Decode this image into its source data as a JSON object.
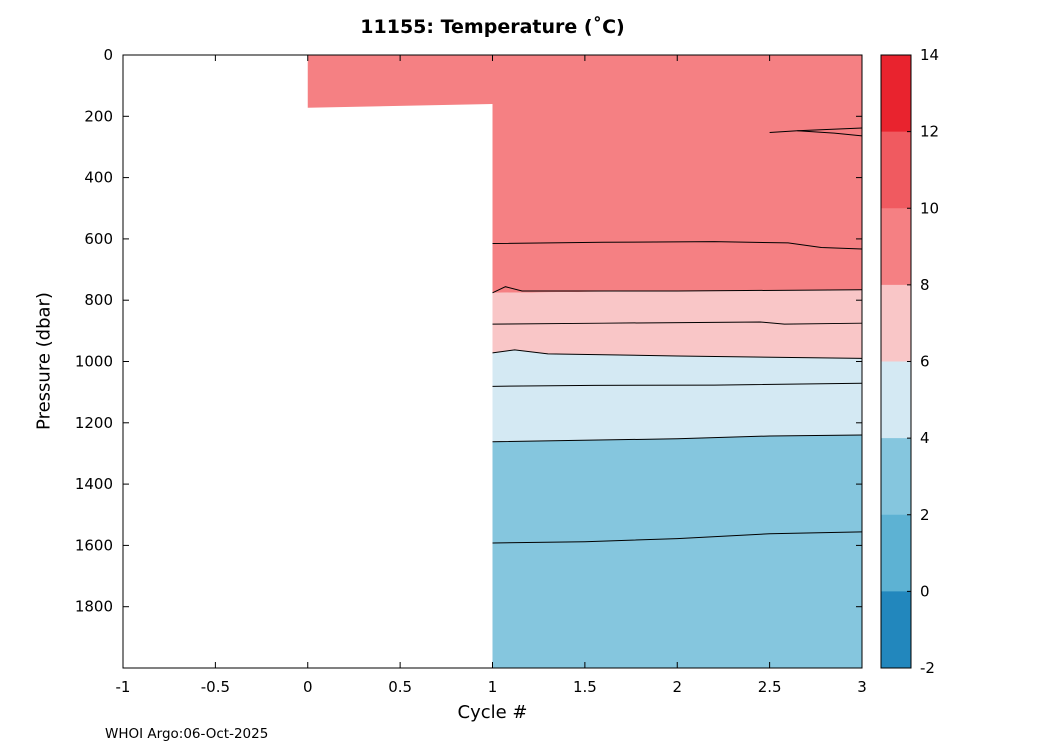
{
  "chart_data": {
    "type": "filled-contour",
    "title": "11155:  Temperature (˚C)",
    "xlabel": "Cycle #",
    "ylabel": "Pressure (dbar)",
    "footer": "WHOI Argo:06-Oct-2025",
    "xlim": [
      -1,
      3
    ],
    "ylim": [
      0,
      2000
    ],
    "y_inverted": true,
    "x_ticks": [
      -1,
      -0.5,
      0,
      0.5,
      1,
      1.5,
      2,
      2.5,
      3
    ],
    "y_ticks": [
      0,
      200,
      400,
      600,
      800,
      1000,
      1200,
      1400,
      1600,
      1800
    ],
    "axis_color": "#000000",
    "contour_line_color": "#000000",
    "fill_regions": [
      {
        "level_range": [
          8,
          10
        ],
        "color": "#f58083",
        "points": [
          [
            0,
            0
          ],
          [
            3,
            0
          ],
          [
            3,
            766
          ],
          [
            2,
            770
          ],
          [
            1,
            776
          ],
          [
            1,
            160
          ],
          [
            0,
            172
          ]
        ]
      },
      {
        "level_range": [
          6,
          8
        ],
        "color": "#f9c6c7",
        "points": [
          [
            1,
            776
          ],
          [
            2,
            770
          ],
          [
            3,
            766
          ],
          [
            3,
            990
          ],
          [
            2,
            982
          ],
          [
            1.3,
            975
          ],
          [
            1.12,
            962
          ],
          [
            1,
            972
          ]
        ]
      },
      {
        "level_range": [
          4,
          6
        ],
        "color": "#d4e9f3",
        "points": [
          [
            1,
            972
          ],
          [
            1.12,
            962
          ],
          [
            1.3,
            975
          ],
          [
            2,
            982
          ],
          [
            3,
            990
          ],
          [
            3,
            1240
          ],
          [
            2.5,
            1243
          ],
          [
            2,
            1252
          ],
          [
            1,
            1262
          ]
        ]
      },
      {
        "level_range": [
          2,
          4
        ],
        "color": "#85c6de",
        "points": [
          [
            1,
            1262
          ],
          [
            2,
            1252
          ],
          [
            2.5,
            1243
          ],
          [
            3,
            1240
          ],
          [
            3,
            2000
          ],
          [
            1,
            2000
          ]
        ]
      }
    ],
    "contour_lines": [
      {
        "level": 10,
        "points": [
          [
            2.5,
            253
          ],
          [
            2.65,
            247
          ],
          [
            3,
            238
          ]
        ]
      },
      {
        "level": 10,
        "points": [
          [
            2.65,
            247
          ],
          [
            2.85,
            255
          ],
          [
            3,
            264
          ]
        ]
      },
      {
        "level": 9,
        "points": [
          [
            1,
            615
          ],
          [
            1.6,
            611
          ],
          [
            2.2,
            609
          ],
          [
            2.6,
            613
          ],
          [
            2.78,
            628
          ],
          [
            3,
            633
          ]
        ]
      },
      {
        "level": 8,
        "points": [
          [
            1,
            776
          ],
          [
            1.07,
            756
          ],
          [
            1.16,
            770
          ],
          [
            2,
            770
          ],
          [
            3,
            766
          ]
        ]
      },
      {
        "level": 7,
        "points": [
          [
            1,
            878
          ],
          [
            1.6,
            875
          ],
          [
            2.45,
            871
          ],
          [
            2.58,
            878
          ],
          [
            3,
            875
          ]
        ]
      },
      {
        "level": 6,
        "points": [
          [
            1,
            972
          ],
          [
            1.12,
            962
          ],
          [
            1.3,
            975
          ],
          [
            2,
            982
          ],
          [
            3,
            990
          ]
        ]
      },
      {
        "level": 5,
        "points": [
          [
            1,
            1081
          ],
          [
            1.55,
            1078
          ],
          [
            2.2,
            1077
          ],
          [
            3,
            1071
          ]
        ]
      },
      {
        "level": 4,
        "points": [
          [
            1,
            1262
          ],
          [
            2,
            1252
          ],
          [
            2.5,
            1243
          ],
          [
            3,
            1240
          ]
        ]
      },
      {
        "level": 3,
        "points": [
          [
            1,
            1592
          ],
          [
            1.5,
            1588
          ],
          [
            2,
            1578
          ],
          [
            2.5,
            1562
          ],
          [
            3,
            1556
          ]
        ]
      }
    ],
    "colorbar": {
      "min": -2,
      "max": 14,
      "step": 2,
      "ticks_top_to_bottom": [
        14,
        12,
        10,
        8,
        6,
        4,
        2,
        0,
        -2
      ],
      "band_colors_top_to_bottom": [
        "#e9232e",
        "#f05a60",
        "#f58083",
        "#f9c6c7",
        "#d4e9f3",
        "#85c6de",
        "#5db2d3",
        "#2287bd"
      ]
    }
  }
}
